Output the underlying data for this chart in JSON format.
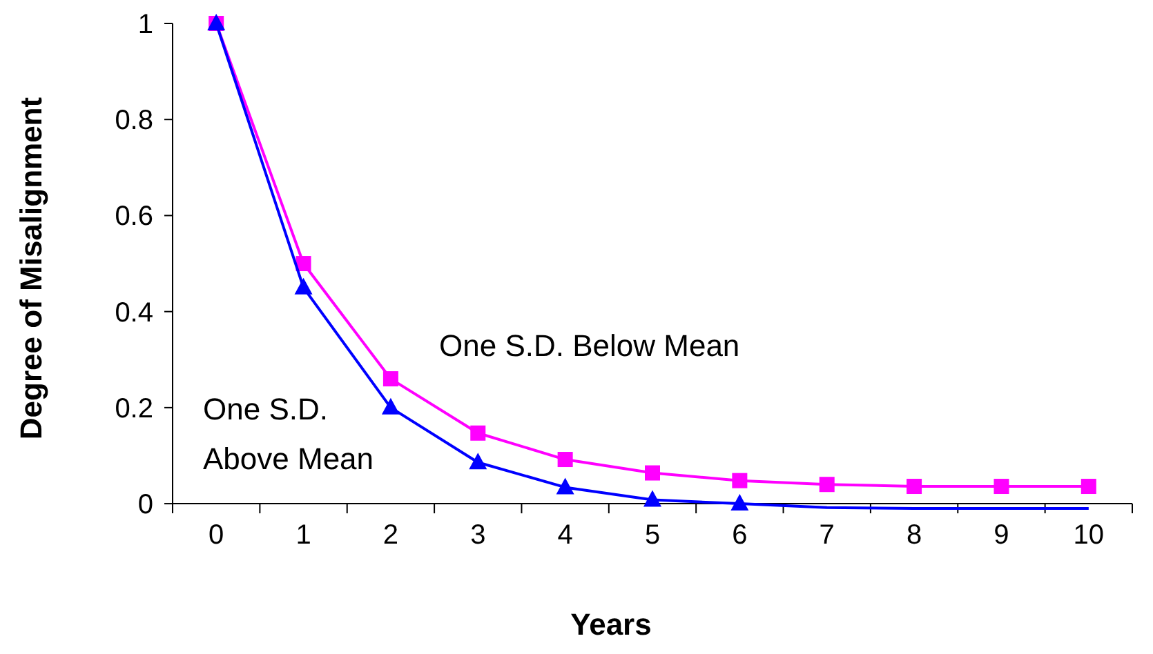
{
  "chart_data": {
    "type": "line",
    "xlabel": "Years",
    "ylabel": "Degree of Misalignment",
    "categories": [
      "0",
      "1",
      "2",
      "3",
      "4",
      "5",
      "6",
      "7",
      "8",
      "9",
      "10"
    ],
    "ylim": [
      -0.02,
      1
    ],
    "yticks": [
      0,
      0.2,
      0.4,
      0.6,
      0.8,
      1
    ],
    "grid": false,
    "series": [
      {
        "name": "One S.D. Below Mean",
        "color": "#ff00ff",
        "marker": "square",
        "values": [
          1,
          0.5,
          0.26,
          0.147,
          0.092,
          0.064,
          0.048,
          0.04,
          0.036,
          0.036,
          0.036
        ]
      },
      {
        "name": "One S.D. Above Mean",
        "color": "#0000ff",
        "marker": "triangle",
        "values": [
          1,
          0.45,
          0.2,
          0.086,
          0.034,
          0.008,
          0,
          null,
          null,
          null,
          null
        ]
      },
      {
        "color": "#0000ff",
        "marker": "none",
        "values": [
          null,
          null,
          null,
          null,
          null,
          null,
          0,
          -0.008,
          -0.01,
          -0.01,
          -0.01
        ]
      }
    ]
  }
}
